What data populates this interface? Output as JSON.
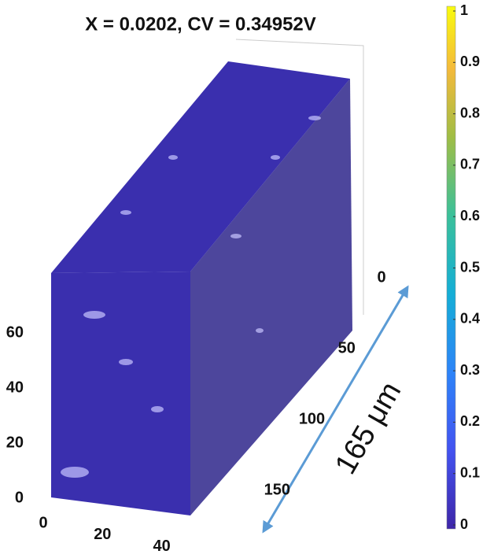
{
  "chart_data": {
    "type": "volume3d",
    "title": "X = 0.0202,   CV = 0.34952V",
    "xlim": [
      0,
      47
    ],
    "xticks": [
      0,
      20,
      40
    ],
    "ylim": [
      0,
      165
    ],
    "yticks": [
      0,
      50,
      100,
      150
    ],
    "zlim": [
      0,
      82
    ],
    "zticks": [
      0,
      20,
      40,
      60
    ],
    "color": "#3a2fae",
    "colorbar": {
      "clim": [
        0,
        1
      ],
      "ticks": [
        0,
        0.1,
        0.2,
        0.3,
        0.4,
        0.5,
        0.6,
        0.7,
        0.8,
        0.9,
        1
      ]
    },
    "annotation": "165 μm"
  }
}
